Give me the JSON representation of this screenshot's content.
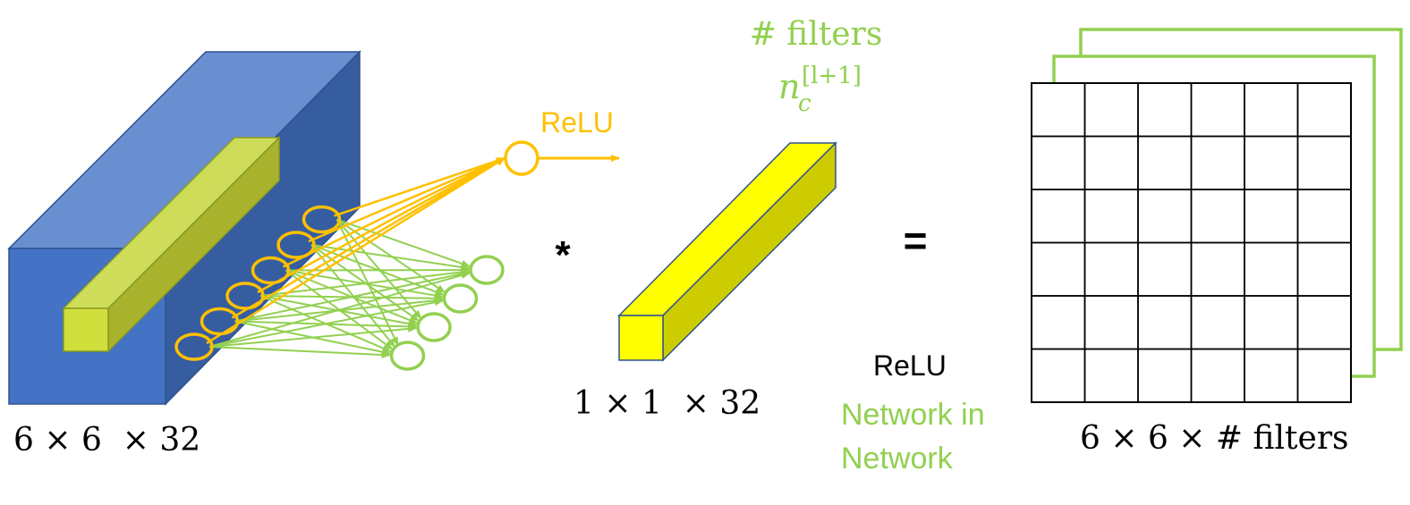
{
  "labels": {
    "input_dims": "6 × 6  × 32",
    "filter_dims": "1 × 1  × 32",
    "output_dims": "6 × 6 × # filters",
    "relu_top": "ReLU",
    "relu_bottom": "ReLU",
    "filters_label": "# filters",
    "filters_sub_n": "n",
    "filters_sub_c": "c",
    "filters_sup": "[l+1]",
    "nin_line1": "Network in",
    "nin_line2": "Network",
    "op_conv": "*",
    "op_equals": "="
  },
  "colors": {
    "volume_front": "#4472c4",
    "volume_top": "#6a8fd0",
    "volume_side": "#365da0",
    "slice_fill": "#d4e157",
    "filter_yellow": "#ffff00",
    "orange": "#ffc000",
    "green": "#92d050",
    "grid_line": "#000000"
  },
  "network": {
    "input_nodes": 6,
    "hidden_nodes": 4,
    "output_nodes": 1
  },
  "output_grid": {
    "rows": 6,
    "cols": 6,
    "stacked_layers": 3
  }
}
